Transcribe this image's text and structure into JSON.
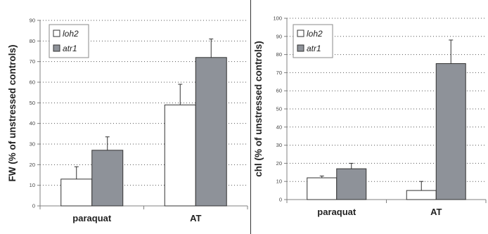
{
  "colors": {
    "bar_loh2": "#ffffff",
    "bar_atr1": "#8e9299",
    "bar_stroke": "#333333",
    "axis": "#808080",
    "grid": "#555555",
    "text": "#222222"
  },
  "chart_data": [
    {
      "type": "bar",
      "categories": [
        "paraquat",
        "AT"
      ],
      "series": [
        {
          "name": "loh2",
          "values": [
            13,
            49
          ],
          "errors": [
            6,
            10
          ]
        },
        {
          "name": "atr1",
          "values": [
            27,
            72
          ],
          "errors": [
            6.5,
            9
          ]
        }
      ],
      "ylabel": "FW (% of unstressed controls)",
      "xlabel": "",
      "ylim": [
        0,
        90
      ],
      "yticks": [
        0,
        10,
        20,
        30,
        40,
        50,
        60,
        70,
        80,
        90
      ],
      "grid": "dotted horizontal",
      "legend": "top-left"
    },
    {
      "type": "bar",
      "categories": [
        "paraquat",
        "AT"
      ],
      "series": [
        {
          "name": "loh2",
          "values": [
            12,
            5
          ],
          "errors": [
            1,
            5
          ]
        },
        {
          "name": "atr1",
          "values": [
            17,
            75
          ],
          "errors": [
            3,
            13
          ]
        }
      ],
      "ylabel": "chl (% of unstressed controls)",
      "xlabel": "",
      "ylim": [
        0,
        100
      ],
      "yticks": [
        0,
        10,
        20,
        30,
        40,
        50,
        60,
        70,
        80,
        90,
        100
      ],
      "grid": "dotted horizontal",
      "legend": "top-left"
    }
  ]
}
